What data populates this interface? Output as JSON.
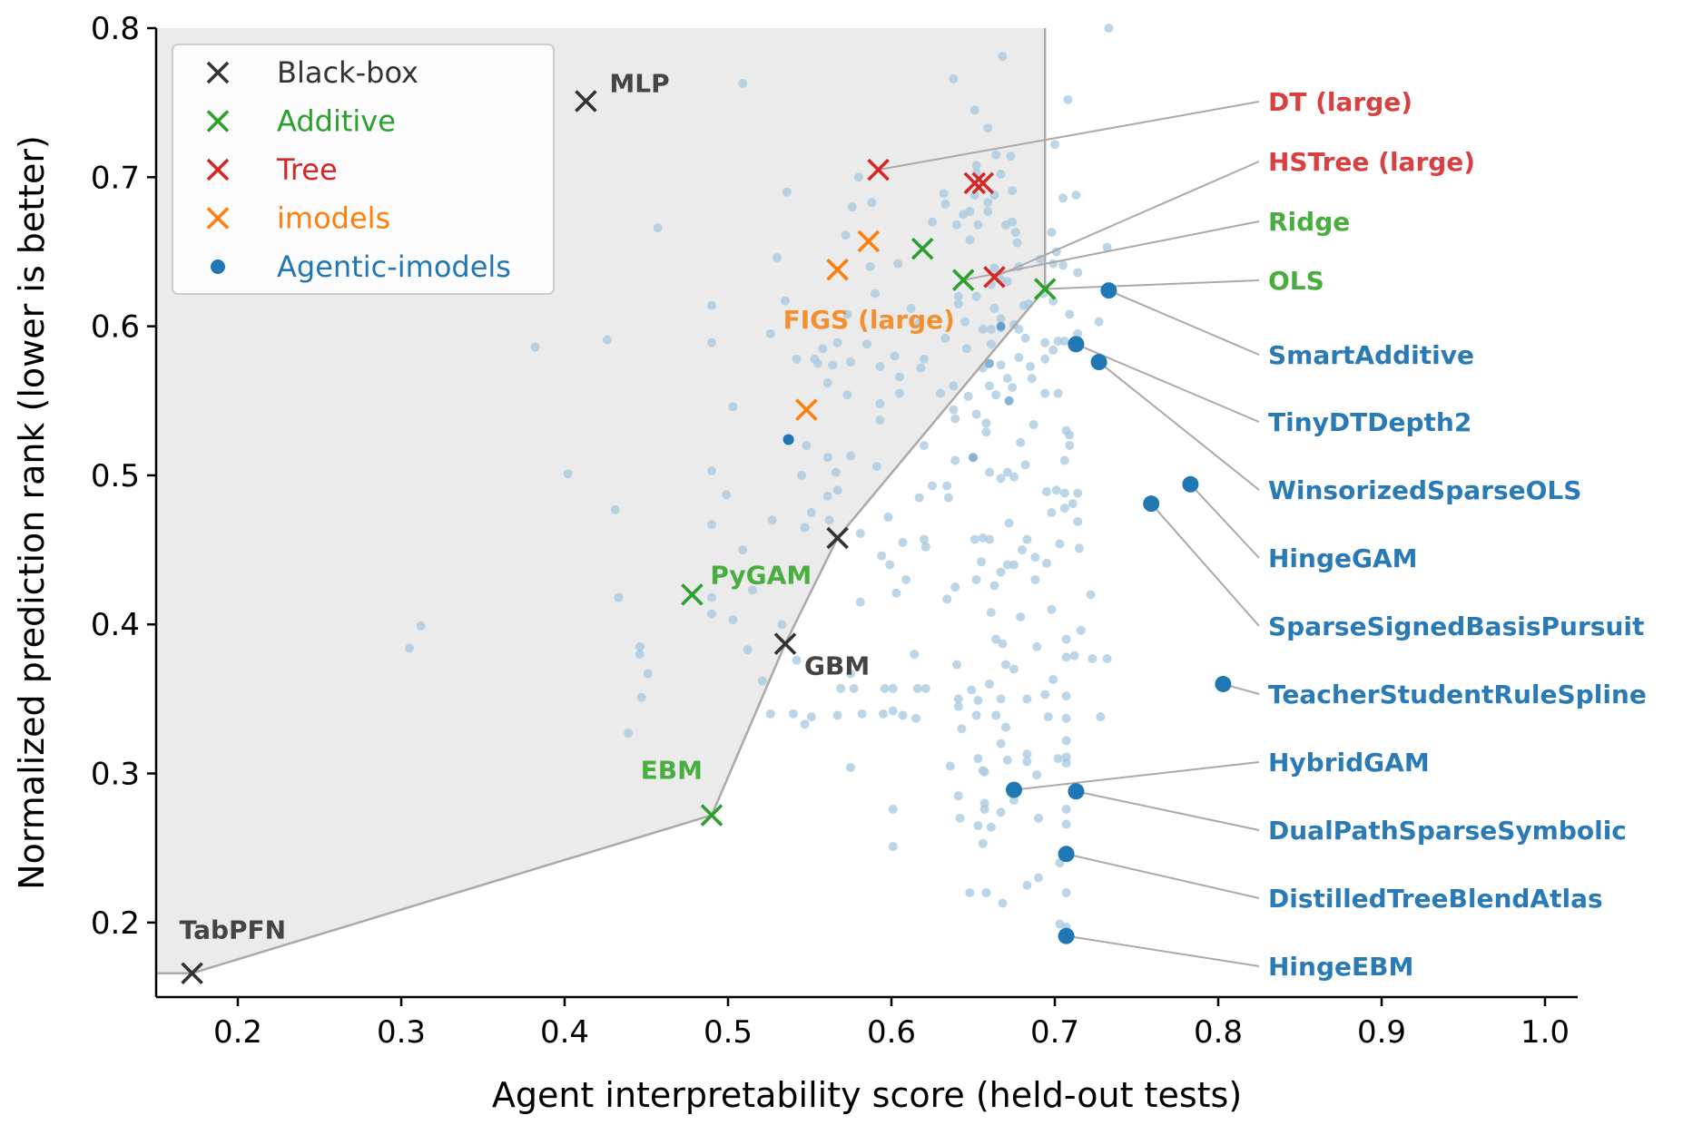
{
  "chart_data": {
    "type": "scatter",
    "title": "",
    "xlabel": "Agent interpretability score (held-out tests)",
    "ylabel": "Normalized prediction rank (lower is better)",
    "xlim": [
      0.15,
      1.02
    ],
    "ylim": [
      0.15,
      0.8
    ],
    "xticks": [
      0.2,
      0.3,
      0.4,
      0.5,
      0.6,
      0.7,
      0.8,
      0.9,
      1.0
    ],
    "yticks": [
      0.2,
      0.3,
      0.4,
      0.5,
      0.6,
      0.7,
      0.8
    ],
    "grid": false,
    "legend_position": "top-left",
    "colors": {
      "black_box": "#333333",
      "additive": "#2ca02c",
      "tree": "#d62728",
      "imodels": "#ff7f0e",
      "agentic": "#1f77b4",
      "background": "#a6c8e0",
      "frontier": "#aaaaaa",
      "shade": "#ebebeb"
    },
    "legend": [
      {
        "key": "black_box",
        "label": "Black-box",
        "marker": "x"
      },
      {
        "key": "additive",
        "label": "Additive",
        "marker": "x"
      },
      {
        "key": "tree",
        "label": "Tree",
        "marker": "x"
      },
      {
        "key": "imodels",
        "label": "imodels",
        "marker": "x"
      },
      {
        "key": "agentic",
        "label": "Agentic-imodels",
        "marker": "o"
      }
    ],
    "frontier": [
      [
        0.15,
        0.166
      ],
      [
        0.172,
        0.166
      ],
      [
        0.49,
        0.272
      ],
      [
        0.535,
        0.387
      ],
      [
        0.567,
        0.458
      ],
      [
        0.694,
        0.625
      ],
      [
        0.694,
        0.8
      ]
    ],
    "series": [
      {
        "group": "black_box",
        "points": [
          {
            "x": 0.413,
            "y": 0.751,
            "label": "MLP"
          },
          {
            "x": 0.172,
            "y": 0.166,
            "label": "TabPFN"
          },
          {
            "x": 0.535,
            "y": 0.387,
            "label": "GBM"
          },
          {
            "x": 0.567,
            "y": 0.458,
            "label": ""
          }
        ]
      },
      {
        "group": "additive",
        "points": [
          {
            "x": 0.478,
            "y": 0.42,
            "label": "PyGAM"
          },
          {
            "x": 0.49,
            "y": 0.272,
            "label": "EBM"
          },
          {
            "x": 0.619,
            "y": 0.652,
            "label": ""
          },
          {
            "x": 0.644,
            "y": 0.631,
            "label": "Ridge"
          },
          {
            "x": 0.694,
            "y": 0.625,
            "label": "OLS"
          }
        ]
      },
      {
        "group": "tree",
        "points": [
          {
            "x": 0.592,
            "y": 0.705,
            "label": "DT (large)"
          },
          {
            "x": 0.651,
            "y": 0.696,
            "label": ""
          },
          {
            "x": 0.656,
            "y": 0.696,
            "label": ""
          },
          {
            "x": 0.663,
            "y": 0.633,
            "label": "HSTree (large)"
          }
        ]
      },
      {
        "group": "imodels",
        "points": [
          {
            "x": 0.548,
            "y": 0.544,
            "label": ""
          },
          {
            "x": 0.567,
            "y": 0.638,
            "label": "FIGS (large)"
          },
          {
            "x": 0.586,
            "y": 0.657,
            "label": ""
          }
        ]
      },
      {
        "group": "agentic",
        "points": [
          {
            "x": 0.733,
            "y": 0.624,
            "label": "SmartAdditive"
          },
          {
            "x": 0.713,
            "y": 0.588,
            "label": "TinyDTDepth2"
          },
          {
            "x": 0.727,
            "y": 0.576,
            "label": "WinsorizedSparseOLS"
          },
          {
            "x": 0.783,
            "y": 0.494,
            "label": "HingeGAM"
          },
          {
            "x": 0.759,
            "y": 0.481,
            "label": "SparseSignedBasisPursuit"
          },
          {
            "x": 0.803,
            "y": 0.36,
            "label": "TeacherStudentRuleSpline"
          },
          {
            "x": 0.675,
            "y": 0.289,
            "label": "HybridGAM"
          },
          {
            "x": 0.713,
            "y": 0.288,
            "label": "DualPathSparseSymbolic"
          },
          {
            "x": 0.707,
            "y": 0.246,
            "label": "DistilledTreeBlendAtlas"
          },
          {
            "x": 0.707,
            "y": 0.191,
            "label": "HingeEBM"
          },
          {
            "x": 0.537,
            "y": 0.524,
            "label": ""
          }
        ]
      }
    ],
    "background_points": [
      [
        0.305,
        0.384
      ],
      [
        0.312,
        0.399
      ],
      [
        0.382,
        0.586
      ],
      [
        0.402,
        0.501
      ],
      [
        0.426,
        0.591
      ],
      [
        0.431,
        0.477
      ],
      [
        0.433,
        0.418
      ],
      [
        0.439,
        0.327
      ],
      [
        0.446,
        0.385
      ],
      [
        0.446,
        0.38
      ],
      [
        0.447,
        0.351
      ],
      [
        0.451,
        0.367
      ],
      [
        0.457,
        0.666
      ],
      [
        0.49,
        0.614
      ],
      [
        0.49,
        0.589
      ],
      [
        0.49,
        0.503
      ],
      [
        0.49,
        0.467
      ],
      [
        0.49,
        0.418
      ],
      [
        0.49,
        0.407
      ],
      [
        0.499,
        0.487
      ],
      [
        0.503,
        0.403
      ],
      [
        0.503,
        0.546
      ],
      [
        0.509,
        0.763
      ],
      [
        0.509,
        0.45
      ],
      [
        0.512,
        0.383
      ],
      [
        0.515,
        0.423
      ],
      [
        0.521,
        0.362
      ],
      [
        0.526,
        0.34
      ],
      [
        0.526,
        0.595
      ],
      [
        0.527,
        0.47
      ],
      [
        0.53,
        0.646
      ],
      [
        0.533,
        0.4
      ],
      [
        0.536,
        0.69
      ],
      [
        0.535,
        0.617
      ],
      [
        0.542,
        0.376
      ],
      [
        0.54,
        0.34
      ],
      [
        0.542,
        0.578
      ],
      [
        0.545,
        0.5
      ],
      [
        0.547,
        0.465
      ],
      [
        0.547,
        0.333
      ],
      [
        0.548,
        0.52
      ],
      [
        0.551,
        0.338
      ],
      [
        0.551,
        0.475
      ],
      [
        0.553,
        0.578
      ],
      [
        0.555,
        0.575
      ],
      [
        0.558,
        0.585
      ],
      [
        0.561,
        0.562
      ],
      [
        0.561,
        0.512
      ],
      [
        0.561,
        0.486
      ],
      [
        0.562,
        0.47
      ],
      [
        0.564,
        0.574
      ],
      [
        0.566,
        0.502
      ],
      [
        0.567,
        0.49
      ],
      [
        0.567,
        0.589
      ],
      [
        0.567,
        0.339
      ],
      [
        0.569,
        0.357
      ],
      [
        0.572,
        0.661
      ],
      [
        0.573,
        0.608
      ],
      [
        0.573,
        0.554
      ],
      [
        0.575,
        0.576
      ],
      [
        0.575,
        0.513
      ],
      [
        0.575,
        0.367
      ],
      [
        0.575,
        0.304
      ],
      [
        0.576,
        0.68
      ],
      [
        0.577,
        0.357
      ],
      [
        0.58,
        0.7
      ],
      [
        0.581,
        0.461
      ],
      [
        0.581,
        0.415
      ],
      [
        0.582,
        0.34
      ],
      [
        0.585,
        0.588
      ],
      [
        0.587,
        0.64
      ],
      [
        0.588,
        0.683
      ],
      [
        0.59,
        0.622
      ],
      [
        0.591,
        0.506
      ],
      [
        0.593,
        0.573
      ],
      [
        0.593,
        0.548
      ],
      [
        0.593,
        0.537
      ],
      [
        0.594,
        0.446
      ],
      [
        0.595,
        0.34
      ],
      [
        0.596,
        0.357
      ],
      [
        0.598,
        0.472
      ],
      [
        0.601,
        0.342
      ],
      [
        0.602,
        0.58
      ],
      [
        0.599,
        0.44
      ],
      [
        0.601,
        0.357
      ],
      [
        0.601,
        0.251
      ],
      [
        0.601,
        0.276
      ],
      [
        0.603,
        0.421
      ],
      [
        0.604,
        0.642
      ],
      [
        0.605,
        0.566
      ],
      [
        0.605,
        0.555
      ],
      [
        0.607,
        0.339
      ],
      [
        0.607,
        0.455
      ],
      [
        0.612,
        0.612
      ],
      [
        0.609,
        0.43
      ],
      [
        0.614,
        0.38
      ],
      [
        0.617,
        0.485
      ],
      [
        0.616,
        0.357
      ],
      [
        0.617,
        0.602
      ],
      [
        0.615,
        0.337
      ],
      [
        0.618,
        0.572
      ],
      [
        0.62,
        0.578
      ],
      [
        0.62,
        0.52
      ],
      [
        0.62,
        0.457
      ],
      [
        0.621,
        0.452
      ],
      [
        0.621,
        0.357
      ],
      [
        0.625,
        0.493
      ],
      [
        0.625,
        0.67
      ],
      [
        0.63,
        0.555
      ],
      [
        0.632,
        0.689
      ],
      [
        0.633,
        0.682
      ],
      [
        0.633,
        0.592
      ],
      [
        0.634,
        0.493
      ],
      [
        0.634,
        0.417
      ],
      [
        0.635,
        0.485
      ],
      [
        0.636,
        0.305
      ],
      [
        0.638,
        0.766
      ],
      [
        0.638,
        0.56
      ],
      [
        0.638,
        0.544
      ],
      [
        0.639,
        0.538
      ],
      [
        0.639,
        0.51
      ],
      [
        0.639,
        0.425
      ],
      [
        0.64,
        0.373
      ],
      [
        0.641,
        0.345
      ],
      [
        0.64,
        0.668
      ],
      [
        0.641,
        0.62
      ],
      [
        0.641,
        0.615
      ],
      [
        0.641,
        0.35
      ],
      [
        0.641,
        0.285
      ],
      [
        0.642,
        0.27
      ],
      [
        0.643,
        0.33
      ],
      [
        0.644,
        0.675
      ],
      [
        0.645,
        0.603
      ],
      [
        0.646,
        0.585
      ],
      [
        0.647,
        0.553
      ],
      [
        0.648,
        0.22
      ],
      [
        0.649,
        0.356
      ],
      [
        0.648,
        0.677
      ],
      [
        0.648,
        0.658
      ],
      [
        0.651,
        0.745
      ],
      [
        0.651,
        0.688
      ],
      [
        0.652,
        0.708
      ],
      [
        0.652,
        0.703
      ],
      [
        0.652,
        0.62
      ],
      [
        0.652,
        0.541
      ],
      [
        0.651,
        0.457
      ],
      [
        0.652,
        0.43
      ],
      [
        0.653,
        0.349
      ],
      [
        0.652,
        0.339
      ],
      [
        0.653,
        0.31
      ],
      [
        0.653,
        0.265
      ],
      [
        0.653,
        0.668
      ],
      [
        0.656,
        0.598
      ],
      [
        0.656,
        0.572
      ],
      [
        0.658,
        0.535
      ],
      [
        0.658,
        0.529
      ],
      [
        0.656,
        0.458
      ],
      [
        0.655,
        0.442
      ],
      [
        0.656,
        0.302
      ],
      [
        0.657,
        0.301
      ],
      [
        0.657,
        0.28
      ],
      [
        0.657,
        0.276
      ],
      [
        0.656,
        0.253
      ],
      [
        0.658,
        0.22
      ],
      [
        0.659,
        0.733
      ],
      [
        0.659,
        0.683
      ],
      [
        0.659,
        0.677
      ],
      [
        0.661,
        0.628
      ],
      [
        0.661,
        0.598
      ],
      [
        0.661,
        0.588
      ],
      [
        0.66,
        0.56
      ],
      [
        0.66,
        0.502
      ],
      [
        0.66,
        0.457
      ],
      [
        0.661,
        0.408
      ],
      [
        0.66,
        0.36
      ],
      [
        0.661,
        0.264
      ],
      [
        0.664,
        0.715
      ],
      [
        0.663,
        0.688
      ],
      [
        0.663,
        0.639
      ],
      [
        0.663,
        0.612
      ],
      [
        0.664,
        0.554
      ],
      [
        0.663,
        0.426
      ],
      [
        0.664,
        0.39
      ],
      [
        0.664,
        0.339
      ],
      [
        0.667,
        0.702
      ],
      [
        0.667,
        0.631
      ],
      [
        0.667,
        0.605
      ],
      [
        0.667,
        0.599
      ],
      [
        0.667,
        0.574
      ],
      [
        0.667,
        0.498
      ],
      [
        0.667,
        0.435
      ],
      [
        0.668,
        0.387
      ],
      [
        0.667,
        0.35
      ],
      [
        0.667,
        0.32
      ],
      [
        0.667,
        0.274
      ],
      [
        0.668,
        0.213
      ],
      [
        0.668,
        0.781
      ],
      [
        0.67,
        0.668
      ],
      [
        0.671,
        0.63
      ],
      [
        0.671,
        0.565
      ],
      [
        0.671,
        0.502
      ],
      [
        0.672,
        0.468
      ],
      [
        0.671,
        0.44
      ],
      [
        0.67,
        0.373
      ],
      [
        0.67,
        0.331
      ],
      [
        0.671,
        0.309
      ],
      [
        0.673,
        0.714
      ],
      [
        0.674,
        0.691
      ],
      [
        0.674,
        0.67
      ],
      [
        0.675,
        0.601
      ],
      [
        0.674,
        0.559
      ],
      [
        0.675,
        0.499
      ],
      [
        0.675,
        0.44
      ],
      [
        0.675,
        0.37
      ],
      [
        0.675,
        0.282
      ],
      [
        0.676,
        0.663
      ],
      [
        0.677,
        0.656
      ],
      [
        0.678,
        0.64
      ],
      [
        0.678,
        0.598
      ],
      [
        0.678,
        0.579
      ],
      [
        0.679,
        0.522
      ],
      [
        0.68,
        0.45
      ],
      [
        0.679,
        0.405
      ],
      [
        0.681,
        0.614
      ],
      [
        0.682,
        0.592
      ],
      [
        0.682,
        0.507
      ],
      [
        0.683,
        0.457
      ],
      [
        0.683,
        0.35
      ],
      [
        0.683,
        0.313
      ],
      [
        0.683,
        0.308
      ],
      [
        0.683,
        0.225
      ],
      [
        0.684,
        0.615
      ],
      [
        0.685,
        0.573
      ],
      [
        0.686,
        0.565
      ],
      [
        0.687,
        0.534
      ],
      [
        0.688,
        0.445
      ],
      [
        0.688,
        0.43
      ],
      [
        0.689,
        0.385
      ],
      [
        0.689,
        0.299
      ],
      [
        0.69,
        0.27
      ],
      [
        0.69,
        0.23
      ],
      [
        0.691,
        0.645
      ],
      [
        0.693,
        0.622
      ],
      [
        0.694,
        0.589
      ],
      [
        0.694,
        0.578
      ],
      [
        0.694,
        0.555
      ],
      [
        0.695,
        0.489
      ],
      [
        0.695,
        0.441
      ],
      [
        0.694,
        0.353
      ],
      [
        0.696,
        0.338
      ],
      [
        0.698,
        0.663
      ],
      [
        0.699,
        0.642
      ],
      [
        0.699,
        0.617
      ],
      [
        0.699,
        0.584
      ],
      [
        0.698,
        0.475
      ],
      [
        0.698,
        0.41
      ],
      [
        0.699,
        0.363
      ],
      [
        0.7,
        0.722
      ],
      [
        0.701,
        0.65
      ],
      [
        0.702,
        0.59
      ],
      [
        0.702,
        0.555
      ],
      [
        0.701,
        0.49
      ],
      [
        0.703,
        0.454
      ],
      [
        0.702,
        0.31
      ],
      [
        0.703,
        0.24
      ],
      [
        0.703,
        0.199
      ],
      [
        0.705,
        0.686
      ],
      [
        0.705,
        0.641
      ],
      [
        0.706,
        0.59
      ],
      [
        0.707,
        0.53
      ],
      [
        0.706,
        0.51
      ],
      [
        0.706,
        0.488
      ],
      [
        0.706,
        0.478
      ],
      [
        0.707,
        0.39
      ],
      [
        0.707,
        0.378
      ],
      [
        0.707,
        0.352
      ],
      [
        0.707,
        0.337
      ],
      [
        0.707,
        0.322
      ],
      [
        0.707,
        0.311
      ],
      [
        0.707,
        0.307
      ],
      [
        0.707,
        0.276
      ],
      [
        0.707,
        0.266
      ],
      [
        0.707,
        0.22
      ],
      [
        0.707,
        0.197
      ],
      [
        0.708,
        0.752
      ],
      [
        0.709,
        0.608
      ],
      [
        0.709,
        0.527
      ],
      [
        0.709,
        0.52
      ],
      [
        0.711,
        0.481
      ],
      [
        0.712,
        0.379
      ],
      [
        0.713,
        0.688
      ],
      [
        0.714,
        0.636
      ],
      [
        0.714,
        0.595
      ],
      [
        0.714,
        0.488
      ],
      [
        0.714,
        0.469
      ],
      [
        0.715,
        0.451
      ],
      [
        0.716,
        0.396
      ],
      [
        0.722,
        0.42
      ],
      [
        0.723,
        0.377
      ],
      [
        0.727,
        0.603
      ],
      [
        0.728,
        0.338
      ],
      [
        0.732,
        0.653
      ],
      [
        0.732,
        0.377
      ],
      [
        0.733,
        0.8
      ]
    ],
    "faint_agentic_points": [
      [
        0.65,
        0.512
      ],
      [
        0.667,
        0.6
      ],
      [
        0.66,
        0.575
      ],
      [
        0.672,
        0.55
      ]
    ]
  }
}
